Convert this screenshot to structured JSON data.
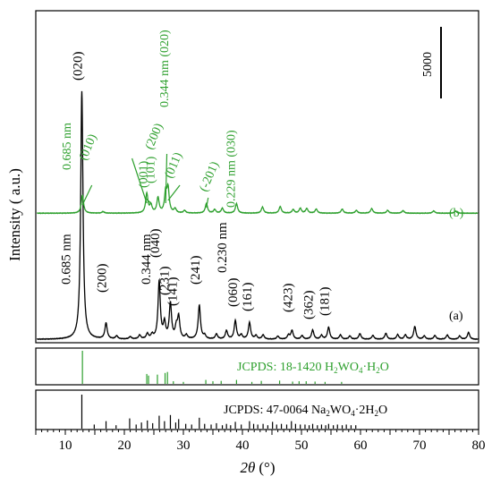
{
  "colors": {
    "pattern_a": "#000000",
    "pattern_b": "#2ea02e"
  },
  "chart_data": {
    "type": "line",
    "xlabel_italic": "2θ",
    "xlabel_unit": "(°)",
    "ylabel": "Intensity ( a.u.)",
    "xlim": [
      5,
      80
    ],
    "xticks": [
      10,
      20,
      30,
      40,
      50,
      60,
      70,
      80
    ],
    "scale_bar_label": "5000",
    "grid": false,
    "series": [
      {
        "key": "a",
        "name": "(a)",
        "color": "#000000",
        "peaks": [
          {
            "x": 12.8,
            "h": 9700
          },
          {
            "x": 16.9,
            "h": 620
          },
          {
            "x": 18.7,
            "h": 120
          },
          {
            "x": 21.0,
            "h": 90
          },
          {
            "x": 22.6,
            "h": 150
          },
          {
            "x": 23.9,
            "h": 200
          },
          {
            "x": 24.7,
            "h": 160
          },
          {
            "x": 25.9,
            "h": 2250
          },
          {
            "x": 26.8,
            "h": 600
          },
          {
            "x": 27.8,
            "h": 1380
          },
          {
            "x": 28.8,
            "h": 420
          },
          {
            "x": 29.2,
            "h": 840
          },
          {
            "x": 30.5,
            "h": 150
          },
          {
            "x": 32.7,
            "h": 1320
          },
          {
            "x": 33.6,
            "h": 140
          },
          {
            "x": 35.6,
            "h": 200
          },
          {
            "x": 37.3,
            "h": 330
          },
          {
            "x": 38.8,
            "h": 720
          },
          {
            "x": 39.8,
            "h": 160
          },
          {
            "x": 41.2,
            "h": 650
          },
          {
            "x": 42.3,
            "h": 140
          },
          {
            "x": 43.5,
            "h": 170
          },
          {
            "x": 46.0,
            "h": 120
          },
          {
            "x": 47.8,
            "h": 160
          },
          {
            "x": 48.4,
            "h": 340
          },
          {
            "x": 50.1,
            "h": 140
          },
          {
            "x": 51.9,
            "h": 360
          },
          {
            "x": 53.4,
            "h": 150
          },
          {
            "x": 54.6,
            "h": 470
          },
          {
            "x": 56.6,
            "h": 170
          },
          {
            "x": 58.2,
            "h": 130
          },
          {
            "x": 59.9,
            "h": 220
          },
          {
            "x": 62.1,
            "h": 150
          },
          {
            "x": 64.3,
            "h": 230
          },
          {
            "x": 66.3,
            "h": 180
          },
          {
            "x": 67.6,
            "h": 170
          },
          {
            "x": 69.2,
            "h": 500
          },
          {
            "x": 70.8,
            "h": 130
          },
          {
            "x": 72.6,
            "h": 150
          },
          {
            "x": 74.7,
            "h": 170
          },
          {
            "x": 76.8,
            "h": 130
          },
          {
            "x": 78.3,
            "h": 270
          }
        ],
        "annotations": [
          {
            "x": 12.8,
            "text": "(020)"
          },
          {
            "x": 12.8,
            "text": "0.685 nm"
          },
          {
            "x": 16.9,
            "text": "(200)"
          },
          {
            "x": 25.9,
            "text": "(040)"
          },
          {
            "x": 25.9,
            "text": "0.344 nm"
          },
          {
            "x": 27.8,
            "text": "(231)"
          },
          {
            "x": 29.2,
            "text": "(141)"
          },
          {
            "x": 32.7,
            "text": "(241)"
          },
          {
            "x": 37.3,
            "text": "0.230 nm"
          },
          {
            "x": 38.8,
            "text": "(060)"
          },
          {
            "x": 41.2,
            "text": "(161)"
          },
          {
            "x": 48.4,
            "text": "(423)"
          },
          {
            "x": 51.9,
            "text": "(362)"
          },
          {
            "x": 54.6,
            "text": "(181)"
          }
        ]
      },
      {
        "key": "b",
        "name": "(b)",
        "color": "#2ea02e",
        "peaks": [
          {
            "x": 12.9,
            "h": 700
          },
          {
            "x": 16.4,
            "h": 60
          },
          {
            "x": 23.8,
            "h": 760
          },
          {
            "x": 24.5,
            "h": 300
          },
          {
            "x": 25.7,
            "h": 590
          },
          {
            "x": 27.0,
            "h": 770
          },
          {
            "x": 27.4,
            "h": 920
          },
          {
            "x": 28.6,
            "h": 160
          },
          {
            "x": 30.2,
            "h": 100
          },
          {
            "x": 33.9,
            "h": 380
          },
          {
            "x": 35.3,
            "h": 140
          },
          {
            "x": 36.6,
            "h": 190
          },
          {
            "x": 39.0,
            "h": 370
          },
          {
            "x": 43.4,
            "h": 240
          },
          {
            "x": 46.4,
            "h": 260
          },
          {
            "x": 48.6,
            "h": 140
          },
          {
            "x": 49.8,
            "h": 190
          },
          {
            "x": 50.9,
            "h": 180
          },
          {
            "x": 52.5,
            "h": 160
          },
          {
            "x": 56.9,
            "h": 160
          },
          {
            "x": 59.3,
            "h": 110
          },
          {
            "x": 61.9,
            "h": 180
          },
          {
            "x": 64.6,
            "h": 110
          },
          {
            "x": 67.2,
            "h": 100
          },
          {
            "x": 72.4,
            "h": 90
          },
          {
            "x": 76.1,
            "h": 80
          }
        ],
        "annotations": [
          {
            "x": 12.9,
            "text": "0.685 nm"
          },
          {
            "x": 12.9,
            "text": "(010)"
          },
          {
            "x": 23.8,
            "text": "(200)"
          },
          {
            "x": 24.5,
            "text": "(001)"
          },
          {
            "x": 25.7,
            "text": "(101)"
          },
          {
            "x": 27.0,
            "text": "0.344 nm (020)"
          },
          {
            "x": 27.4,
            "text": "(011)"
          },
          {
            "x": 33.9,
            "text": "(-201)"
          },
          {
            "x": 39.0,
            "text": "0.229 nm (030)"
          }
        ]
      }
    ],
    "references": [
      {
        "key": "h2wo4",
        "label": "JCPDS: 18-1420  H2WO4·H2O",
        "label_parts": [
          "JCPDS: 18-1420  H",
          "2",
          "WO",
          "4",
          "·H",
          "2",
          "O"
        ],
        "color": "#2ea02e",
        "lines": [
          {
            "x": 12.9,
            "i": 100
          },
          {
            "x": 23.8,
            "i": 30
          },
          {
            "x": 24.1,
            "i": 25
          },
          {
            "x": 25.6,
            "i": 28
          },
          {
            "x": 26.9,
            "i": 33
          },
          {
            "x": 27.3,
            "i": 36
          },
          {
            "x": 28.3,
            "i": 8
          },
          {
            "x": 30.0,
            "i": 6
          },
          {
            "x": 33.8,
            "i": 12
          },
          {
            "x": 35.0,
            "i": 8
          },
          {
            "x": 36.4,
            "i": 9
          },
          {
            "x": 39.0,
            "i": 12
          },
          {
            "x": 41.6,
            "i": 6
          },
          {
            "x": 43.2,
            "i": 9
          },
          {
            "x": 46.3,
            "i": 10
          },
          {
            "x": 48.5,
            "i": 7
          },
          {
            "x": 49.6,
            "i": 8
          },
          {
            "x": 50.8,
            "i": 8
          },
          {
            "x": 52.3,
            "i": 7
          },
          {
            "x": 54.0,
            "i": 6
          },
          {
            "x": 56.8,
            "i": 6
          }
        ]
      },
      {
        "key": "na2wo4",
        "label": "JCPDS: 47-0064 Na2WO4·2H2O",
        "label_parts": [
          "JCPDS: 47-0064 Na",
          "2",
          "WO",
          "4",
          "·2H",
          "2",
          "O"
        ],
        "color": "#000000",
        "lines": [
          {
            "x": 12.8,
            "i": 100
          },
          {
            "x": 14.9,
            "i": 12
          },
          {
            "x": 16.9,
            "i": 22
          },
          {
            "x": 18.6,
            "i": 10
          },
          {
            "x": 20.9,
            "i": 30
          },
          {
            "x": 22.0,
            "i": 12
          },
          {
            "x": 22.9,
            "i": 18
          },
          {
            "x": 23.9,
            "i": 24
          },
          {
            "x": 24.8,
            "i": 16
          },
          {
            "x": 25.9,
            "i": 38
          },
          {
            "x": 26.8,
            "i": 22
          },
          {
            "x": 27.8,
            "i": 40
          },
          {
            "x": 28.7,
            "i": 18
          },
          {
            "x": 29.2,
            "i": 28
          },
          {
            "x": 30.4,
            "i": 14
          },
          {
            "x": 31.4,
            "i": 12
          },
          {
            "x": 32.7,
            "i": 32
          },
          {
            "x": 33.6,
            "i": 14
          },
          {
            "x": 34.7,
            "i": 12
          },
          {
            "x": 35.6,
            "i": 16
          },
          {
            "x": 36.6,
            "i": 10
          },
          {
            "x": 37.3,
            "i": 14
          },
          {
            "x": 38.0,
            "i": 10
          },
          {
            "x": 38.8,
            "i": 20
          },
          {
            "x": 39.8,
            "i": 12
          },
          {
            "x": 41.2,
            "i": 22
          },
          {
            "x": 41.9,
            "i": 14
          },
          {
            "x": 42.6,
            "i": 12
          },
          {
            "x": 43.5,
            "i": 14
          },
          {
            "x": 44.3,
            "i": 10
          },
          {
            "x": 45.1,
            "i": 20
          },
          {
            "x": 45.8,
            "i": 12
          },
          {
            "x": 46.6,
            "i": 14
          },
          {
            "x": 47.5,
            "i": 12
          },
          {
            "x": 48.3,
            "i": 22
          },
          {
            "x": 49.0,
            "i": 14
          },
          {
            "x": 49.8,
            "i": 12
          },
          {
            "x": 50.6,
            "i": 12
          },
          {
            "x": 51.3,
            "i": 10
          },
          {
            "x": 51.9,
            "i": 14
          },
          {
            "x": 52.7,
            "i": 10
          },
          {
            "x": 53.4,
            "i": 12
          },
          {
            "x": 54.1,
            "i": 10
          },
          {
            "x": 54.6,
            "i": 14
          },
          {
            "x": 55.4,
            "i": 10
          },
          {
            "x": 56.1,
            "i": 12
          },
          {
            "x": 56.9,
            "i": 10
          },
          {
            "x": 57.6,
            "i": 12
          },
          {
            "x": 58.4,
            "i": 10
          },
          {
            "x": 59.2,
            "i": 10
          }
        ]
      }
    ]
  }
}
